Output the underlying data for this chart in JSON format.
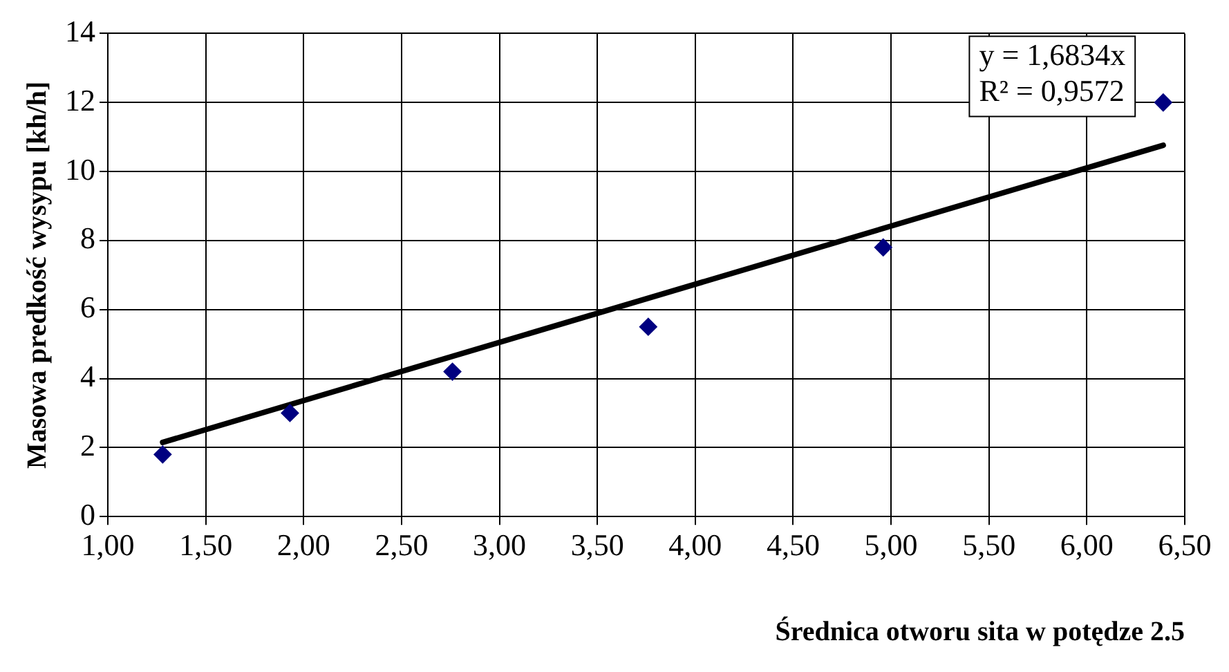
{
  "chart_data": {
    "type": "scatter",
    "xlabel": "Średnica otworu sita w potędze 2.5",
    "ylabel": "Masowa predkość wysypu [kh/h]",
    "series": [
      {
        "type": "scatter",
        "color": "#000080",
        "marker": "diamond",
        "x": [
          1.28,
          1.93,
          2.76,
          3.76,
          4.96,
          6.39
        ],
        "values": [
          1.8,
          3.0,
          4.2,
          5.5,
          7.8,
          12.0
        ]
      },
      {
        "type": "line",
        "color": "#000000",
        "marker": "none",
        "line_style": "solid",
        "x": [
          1.28,
          6.39
        ],
        "values": [
          2.15,
          10.76
        ]
      }
    ],
    "xlim": [
      1,
      6.5
    ],
    "xticks": [
      {
        "value": 1,
        "label": "1,00"
      },
      {
        "value": 1.5,
        "label": "1,50"
      },
      {
        "value": 2,
        "label": "2,00"
      },
      {
        "value": 2.5,
        "label": "2,50"
      },
      {
        "value": 3,
        "label": "3,00"
      },
      {
        "value": 3.5,
        "label": "3,50"
      },
      {
        "value": 4,
        "label": "4,00"
      },
      {
        "value": 4.5,
        "label": "4,50"
      },
      {
        "value": 5,
        "label": "5,00"
      },
      {
        "value": 5.5,
        "label": "5,50"
      },
      {
        "value": 6,
        "label": "6,00"
      },
      {
        "value": 6.5,
        "label": "6,50"
      }
    ],
    "ylim": [
      0,
      14
    ],
    "yticks": [
      0,
      2,
      4,
      6,
      8,
      10,
      12,
      14
    ],
    "annotations": [
      "y = 1,6834x",
      "R² = 0,9572"
    ],
    "grid": true,
    "legend": false
  }
}
